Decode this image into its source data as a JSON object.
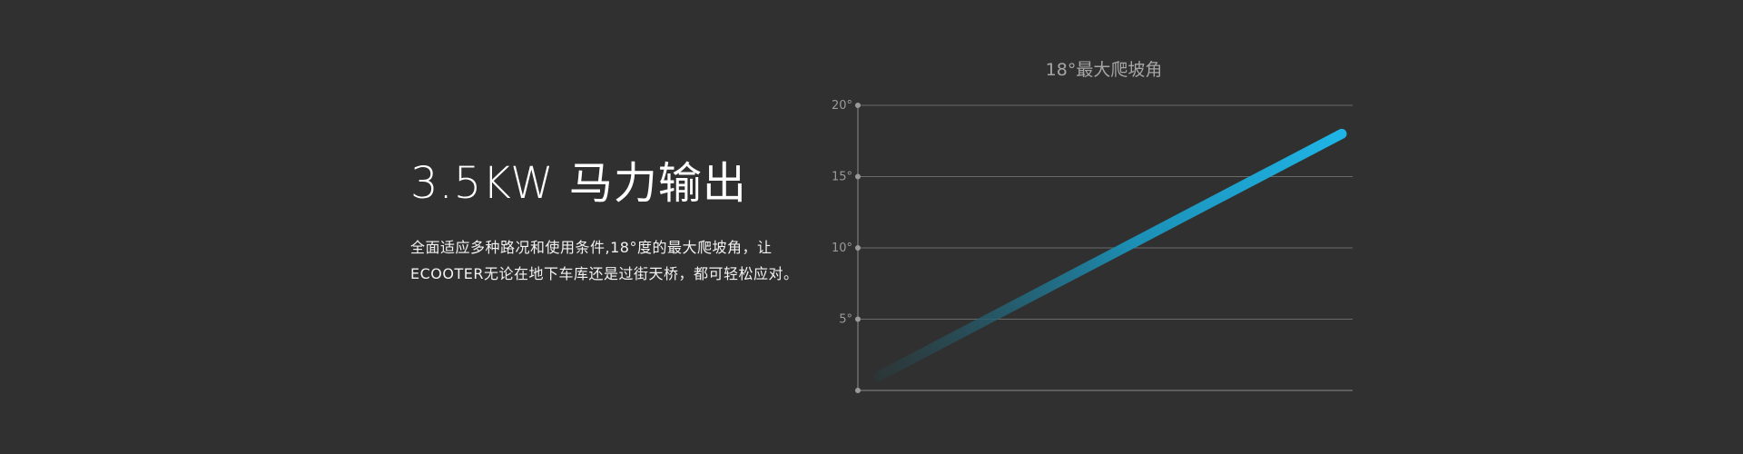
{
  "feature": {
    "headline": "3.5KW 马力输出",
    "description": "全面适应多种路况和使用条件,18°度的最大爬坡角，让ECOOTER无论在地下车库还是过街天桥，都可轻松应对。"
  },
  "colors": {
    "background": "#303030",
    "line_start": "#2a3a3c",
    "line_end": "#1eb5e6"
  },
  "chart_data": {
    "type": "line",
    "title": "18°最大爬坡角",
    "xlabel": "",
    "ylabel": "",
    "ylim": [
      0,
      20
    ],
    "yticks": [
      5,
      10,
      15,
      20
    ],
    "ytick_labels": [
      "5°",
      "10°",
      "15°",
      "20°"
    ],
    "grid": true,
    "series": [
      {
        "values": [
          1,
          18
        ],
        "x": [
          0,
          1
        ]
      }
    ]
  }
}
